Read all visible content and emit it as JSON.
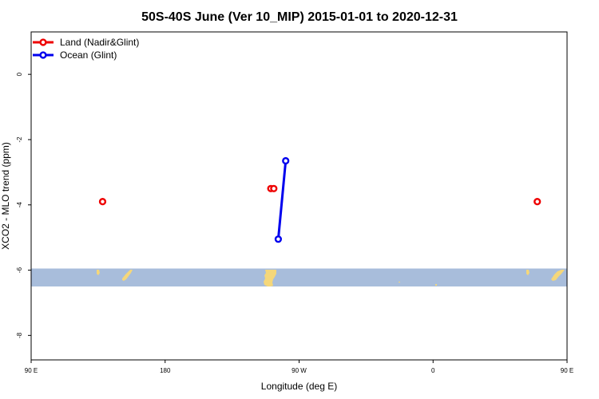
{
  "chart_data": {
    "type": "scatter",
    "title": "50S-40S June (Ver 10_MIP)   2015-01-01 to 2020-12-31",
    "xlabel": "Longitude (deg E)",
    "ylabel": "XCO2 - MLO trend (ppm)",
    "xlim": [
      90,
      450
    ],
    "ylim": [
      -8.75,
      1.3
    ],
    "x_ticks": [
      {
        "value": 90,
        "label": "90 E"
      },
      {
        "value": 180,
        "label": "180"
      },
      {
        "value": 270,
        "label": "90 W"
      },
      {
        "value": 360,
        "label": "0"
      },
      {
        "value": 450,
        "label": "90 E"
      },
      {
        "value": 540,
        "label": "180"
      }
    ],
    "y_ticks": [
      0,
      -2,
      -4,
      -6,
      -8
    ],
    "legend_position": "top-left",
    "series": [
      {
        "name": "Land (Nadir&Glint)",
        "color": "#ee0000",
        "points": [
          {
            "x": 138,
            "y": -3.9
          },
          {
            "x": 251,
            "y": -3.5
          },
          {
            "x": 253,
            "y": -3.5
          },
          {
            "x": 430,
            "y": -3.9
          }
        ]
      },
      {
        "name": "Ocean (Glint)",
        "color": "#0000ee",
        "connected": true,
        "points": [
          {
            "x": 256,
            "y": -5.05
          },
          {
            "x": 261,
            "y": -2.65
          }
        ]
      }
    ],
    "map_band": {
      "y_range": [
        -6.5,
        -5.95
      ],
      "ocean_color": "#a8bddb",
      "land_color": "#f5d77a"
    }
  }
}
